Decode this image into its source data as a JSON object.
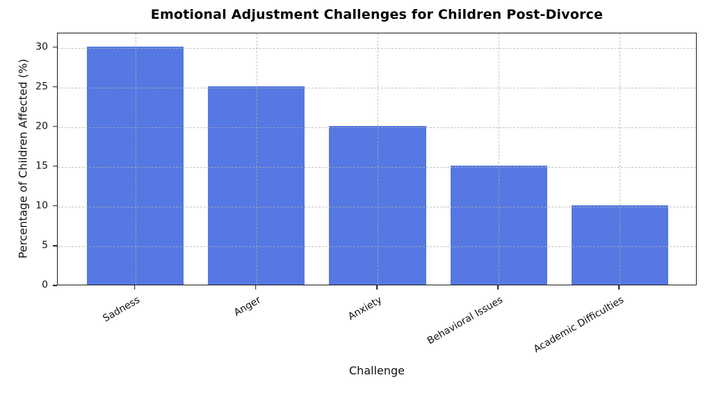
{
  "chart_data": {
    "type": "bar",
    "title": "Emotional Adjustment Challenges for Children Post-Divorce",
    "xlabel": "Challenge",
    "ylabel": "Percentage of Children Affected (%)",
    "categories": [
      "Sadness",
      "Anger",
      "Anxiety",
      "Behavioral Issues",
      "Academic Difficulties"
    ],
    "values": [
      30,
      25,
      20,
      15,
      10
    ],
    "yticks": [
      0,
      5,
      10,
      15,
      20,
      25,
      30
    ],
    "ylim": [
      0,
      31.8
    ],
    "bar_width_fraction": 0.8,
    "xtick_rotation_deg": 30,
    "bar_color": "#5578e2",
    "grid": {
      "style": "dashed",
      "axes": "both",
      "color": "#b0b0b0",
      "above_bars": true
    },
    "background": "#ffffff",
    "legend": "none"
  }
}
